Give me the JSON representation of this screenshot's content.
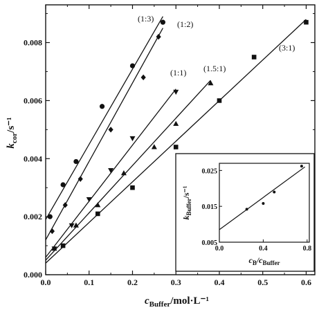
{
  "chart_data": [
    {
      "type": "scatter",
      "xlabel": {
        "main": "c",
        "sub": "Buffer",
        "rest": "/mol·L⁻¹"
      },
      "ylabel": {
        "main": "k",
        "sub": "cor",
        "rest": "/s⁻¹"
      },
      "xlim": [
        0,
        0.62
      ],
      "ylim": [
        0,
        0.0093
      ],
      "x_ticks": [
        0.0,
        0.1,
        0.2,
        0.3,
        0.4,
        0.5,
        0.6
      ],
      "x_tick_labels": [
        "0.0",
        "0.1",
        "0.2",
        "0.3",
        "0.4",
        "0.5",
        "0.6"
      ],
      "y_ticks": [
        0.0,
        0.002,
        0.004,
        0.006,
        0.008
      ],
      "y_tick_labels": [
        "0.000",
        "0.002",
        "0.004",
        "0.006",
        "0.008"
      ],
      "grid": false,
      "series": [
        {
          "name": "(1:3)",
          "marker": "circle",
          "x": [
            0.01,
            0.04,
            0.07,
            0.13,
            0.2,
            0.27
          ],
          "y": [
            0.002,
            0.0031,
            0.0039,
            0.0058,
            0.0072,
            0.0087
          ],
          "fit": {
            "x": [
              0,
              0.27
            ],
            "y": [
              0.0019,
              0.0089
            ]
          }
        },
        {
          "name": "(1:2)",
          "marker": "diamond",
          "x": [
            0.015,
            0.045,
            0.08,
            0.15,
            0.225,
            0.26
          ],
          "y": [
            0.0015,
            0.0024,
            0.0033,
            0.005,
            0.0068,
            0.0082
          ],
          "fit": {
            "x": [
              0,
              0.27
            ],
            "y": [
              0.0012,
              0.0085
            ]
          }
        },
        {
          "name": "(1:1)",
          "marker": "triangle-down",
          "x": [
            0.02,
            0.06,
            0.1,
            0.15,
            0.2,
            0.3
          ],
          "y": [
            0.0009,
            0.0017,
            0.0026,
            0.0036,
            0.0047,
            0.0063
          ],
          "fit": {
            "x": [
              0,
              0.3
            ],
            "y": [
              0.0006,
              0.0064
            ]
          }
        },
        {
          "name": "(1.5:1)",
          "marker": "triangle-up",
          "x": [
            0.02,
            0.07,
            0.12,
            0.18,
            0.25,
            0.3,
            0.38
          ],
          "y": [
            0.0009,
            0.0017,
            0.0024,
            0.0035,
            0.0044,
            0.0052,
            0.0066
          ],
          "fit": {
            "x": [
              0,
              0.38
            ],
            "y": [
              0.0005,
              0.0067
            ]
          }
        },
        {
          "name": "(3:1)",
          "marker": "square",
          "x": [
            0.04,
            0.12,
            0.2,
            0.3,
            0.4,
            0.48,
            0.6
          ],
          "y": [
            0.001,
            0.0021,
            0.003,
            0.0044,
            0.006,
            0.0075,
            0.0087
          ],
          "fit": {
            "x": [
              0,
              0.6
            ],
            "y": [
              0.0004,
              0.0088
            ]
          }
        }
      ]
    },
    {
      "type": "scatter",
      "inset": true,
      "xlabel": {
        "main": "c",
        "sub": "B",
        "rest": "/c",
        "sub2": "Buffer"
      },
      "ylabel": {
        "main": "k",
        "sub": "Buffer",
        "rest": "/s⁻¹"
      },
      "xlim": [
        0,
        0.82
      ],
      "ylim": [
        0.005,
        0.027
      ],
      "x_ticks": [
        0.0,
        0.4,
        0.8
      ],
      "x_tick_labels": [
        "0.0",
        "0.4",
        "0.8"
      ],
      "y_ticks": [
        0.005,
        0.015,
        0.025
      ],
      "y_tick_labels": [
        "0.005",
        "0.015",
        "0.025"
      ],
      "grid": false,
      "series": [
        {
          "marker": "dot",
          "x": [
            0.25,
            0.4,
            0.5,
            0.75
          ],
          "y": [
            0.0142,
            0.0158,
            0.019,
            0.0262
          ],
          "fit": {
            "x": [
              0,
              0.78
            ],
            "y": [
              0.0085,
              0.026
            ]
          }
        }
      ]
    }
  ]
}
